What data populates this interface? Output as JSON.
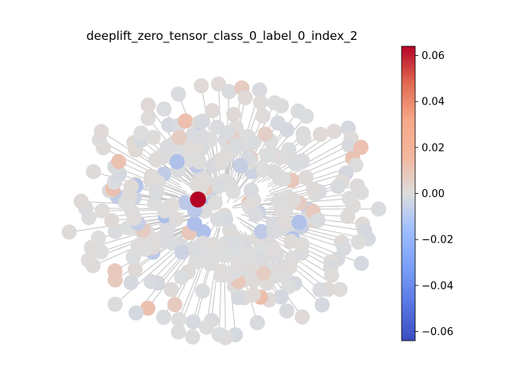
{
  "chart_data": {
    "type": "network",
    "title": "deeplift_zero_tensor_class_0_label_0_index_2",
    "colormap": "coolwarm",
    "colorbar": {
      "range": [
        -0.064,
        0.064
      ],
      "ticks": [
        "0.06",
        "0.04",
        "0.02",
        "0.00",
        "−0.02",
        "−0.04",
        "−0.06"
      ],
      "tick_values": [
        0.06,
        0.04,
        0.02,
        0.0,
        -0.02,
        -0.04,
        -0.06
      ]
    },
    "node_value_summary": {
      "max_node_value": 0.064,
      "most_nodes_near": 0.0
    }
  }
}
